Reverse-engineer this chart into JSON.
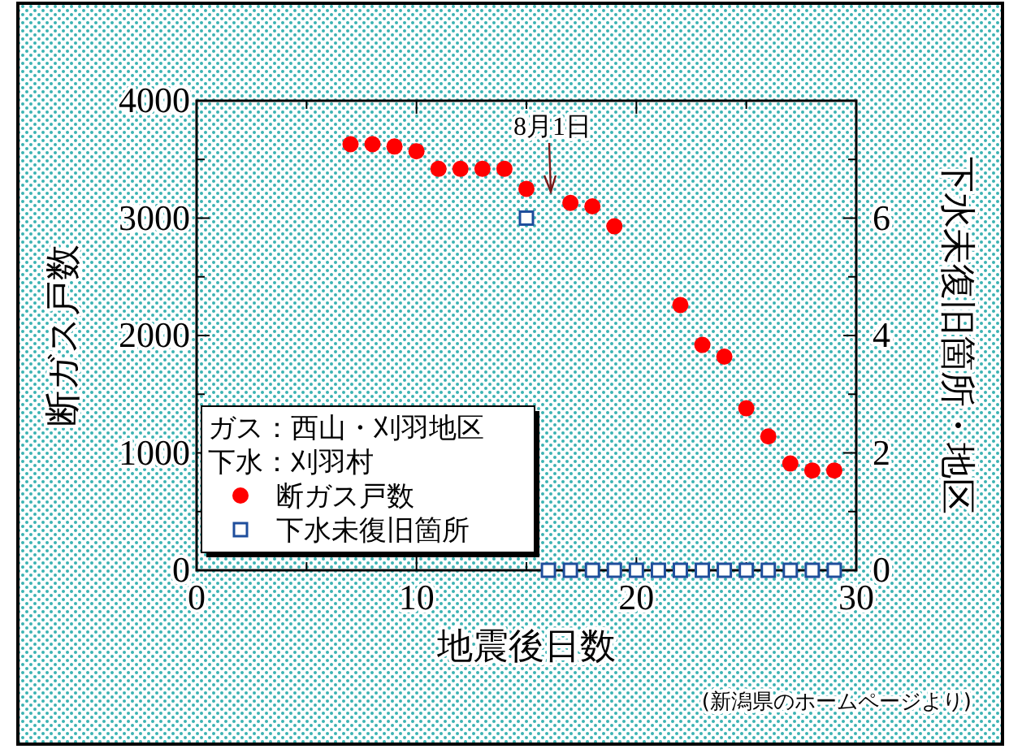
{
  "chart_data": {
    "type": "scatter",
    "xlabel": "地震後日数",
    "ylabel": "断ガス戸数",
    "y2label": "下水未復旧箇所・地区",
    "legend_title": "ガス：西山・刈羽地区",
    "legend": "bottom left",
    "grid": false,
    "xlim": [
      0,
      30
    ],
    "xticks": [
      0,
      {
        "value": 5,
        "label": null
      },
      10,
      {
        "value": 15,
        "label": null
      },
      20,
      {
        "value": 25,
        "label": null
      },
      30
    ],
    "ylim": [
      0,
      4000
    ],
    "yticks": [
      0,
      {
        "value": 500,
        "label": null
      },
      1000,
      {
        "value": 1500,
        "label": null
      },
      2000,
      {
        "value": 2500,
        "label": null
      },
      3000,
      {
        "value": 3500,
        "label": null
      },
      4000
    ],
    "y2lim": [
      0,
      8
    ],
    "y2ticks": [
      0,
      {
        "value": 1,
        "label": null
      },
      2,
      {
        "value": 3,
        "label": null
      },
      4,
      {
        "value": 5,
        "label": null
      },
      6,
      {
        "value": 7,
        "label": null
      }
    ],
    "series": [
      {
        "name": "断ガス戸数",
        "color": "#ff0000",
        "marker": "circle",
        "x": [
          7,
          8,
          9,
          10,
          11,
          12,
          13,
          14,
          15,
          17,
          18,
          19,
          22,
          23,
          24,
          25,
          26,
          27,
          28,
          29
        ],
        "values": [
          3630,
          3630,
          3610,
          3570,
          3420,
          3420,
          3420,
          3420,
          3250,
          3130,
          3100,
          2930,
          2260,
          1920,
          1820,
          1380,
          1140,
          910,
          850,
          850
        ]
      },
      {
        "name": "下水未復旧箇所",
        "color": "#1f4e9c",
        "marker": "square",
        "axis": "y2",
        "x": [
          15,
          16,
          17,
          18,
          19,
          20,
          21,
          22,
          23,
          24,
          25,
          26,
          27,
          28,
          29
        ],
        "values": [
          6,
          0,
          0,
          0,
          0,
          0,
          0,
          0,
          0,
          0,
          0,
          0,
          0,
          0,
          0
        ]
      }
    ],
    "annotations": [
      "8月1日",
      "下水：刈羽村",
      "(新潟県のホームページより)"
    ]
  }
}
